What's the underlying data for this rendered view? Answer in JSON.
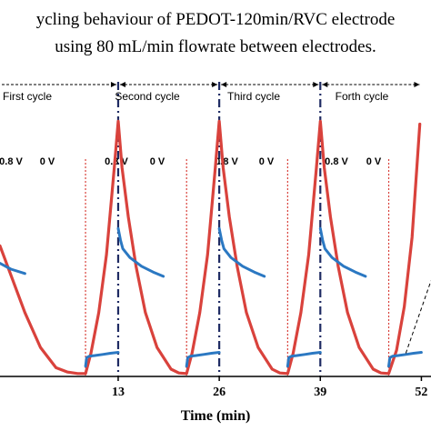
{
  "title_lines": [
    "ycling behaviour of  PEDOT-120min/RVC electrode",
    "using 80 mL/min flowrate between electrodes."
  ],
  "cycles": [
    "First cycle",
    "Second cycle",
    "Third cycle",
    "Forth cycle"
  ],
  "voltage_labels": [
    "0.8 V",
    "0 V",
    "0.8 V",
    "0 V",
    "0.8 V",
    "0 V",
    "0.8 V",
    "0 V"
  ],
  "colors": {
    "voltage_curve": "#d9423c",
    "current_curve": "#2b78c2",
    "cycle_divider": "#1f2b63",
    "switch_line": "#d9423c",
    "axis": "#000000"
  },
  "chart_data": {
    "type": "line",
    "xlabel": "Time (min)",
    "xlim": [
      -2.2,
      52.3
    ],
    "x_ticks": [
      "13",
      "26",
      "39",
      "52"
    ],
    "x_tick_values": [
      13,
      26,
      39,
      52
    ],
    "cycle_boundaries": [
      13,
      26,
      39
    ],
    "potential_switch_times": [
      8.8,
      21.8,
      34.8,
      47.8
    ],
    "series": [
      {
        "role": "voltage",
        "x": [
          -2.2,
          1.0,
          3.0,
          5.0,
          6.5,
          7.8,
          8.8,
          9.5,
          10.5,
          11.5,
          12.5,
          13.0,
          13.5,
          14.3,
          15.3,
          16.5,
          18.0,
          19.8,
          20.8,
          21.8,
          22.5,
          23.5,
          24.5,
          25.5,
          26.0,
          26.5,
          27.3,
          28.3,
          29.5,
          31.0,
          32.8,
          33.8,
          34.8,
          35.5,
          36.5,
          37.5,
          38.5,
          39.0,
          39.5,
          40.3,
          41.3,
          42.5,
          44.0,
          45.8,
          46.8,
          47.8,
          48.8,
          49.8,
          50.8,
          51.8
        ],
        "y": [
          0.45,
          0.22,
          0.1,
          0.03,
          0.015,
          0.01,
          0.01,
          0.08,
          0.22,
          0.42,
          0.72,
          0.88,
          0.72,
          0.55,
          0.38,
          0.22,
          0.1,
          0.025,
          0.012,
          0.01,
          0.08,
          0.22,
          0.42,
          0.72,
          0.88,
          0.72,
          0.55,
          0.38,
          0.22,
          0.1,
          0.025,
          0.012,
          0.01,
          0.08,
          0.22,
          0.42,
          0.72,
          0.88,
          0.72,
          0.55,
          0.38,
          0.22,
          0.1,
          0.025,
          0.012,
          0.01,
          0.09,
          0.24,
          0.48,
          0.87
        ]
      },
      {
        "role": "current",
        "segments": [
          {
            "x": [
              -2.2,
              -0.8,
              1.0
            ],
            "y": [
              0.39,
              0.37,
              0.355
            ]
          },
          {
            "x": [
              8.8,
              8.95,
              9.3,
              10.0,
              11.0,
              12.0,
              13.0
            ],
            "y": [
              0.035,
              0.065,
              0.07,
              0.072,
              0.076,
              0.08,
              0.083
            ]
          },
          {
            "x": [
              13.0,
              13.3,
              13.6,
              14.5,
              16.0,
              17.5,
              18.8
            ],
            "y": [
              0.51,
              0.47,
              0.44,
              0.41,
              0.38,
              0.36,
              0.345
            ]
          },
          {
            "x": [
              21.8,
              21.95,
              22.3,
              23.0,
              24.0,
              25.0,
              26.0
            ],
            "y": [
              0.035,
              0.065,
              0.07,
              0.072,
              0.076,
              0.08,
              0.083
            ]
          },
          {
            "x": [
              26.0,
              26.3,
              26.6,
              27.5,
              29.0,
              30.5,
              31.8
            ],
            "y": [
              0.51,
              0.47,
              0.44,
              0.41,
              0.38,
              0.36,
              0.345
            ]
          },
          {
            "x": [
              34.8,
              34.95,
              35.3,
              36.0,
              37.0,
              38.0,
              39.0
            ],
            "y": [
              0.035,
              0.065,
              0.07,
              0.072,
              0.076,
              0.08,
              0.083
            ]
          },
          {
            "x": [
              39.0,
              39.3,
              39.6,
              40.5,
              42.0,
              43.5,
              44.8
            ],
            "y": [
              0.51,
              0.47,
              0.44,
              0.41,
              0.38,
              0.36,
              0.345
            ]
          },
          {
            "x": [
              47.8,
              47.95,
              48.3,
              49.0,
              50.0,
              51.0,
              52.0
            ],
            "y": [
              0.035,
              0.065,
              0.07,
              0.072,
              0.076,
              0.08,
              0.083
            ]
          }
        ]
      }
    ]
  }
}
